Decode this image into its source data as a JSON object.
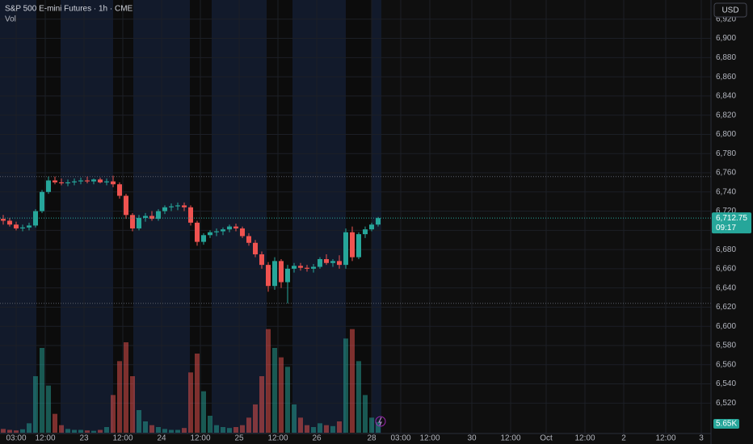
{
  "header": {
    "title": "S&P 500 E-mini Futures · 1h · CME",
    "volume_label": "Vol",
    "currency": "USD"
  },
  "chart_data": {
    "type": "candlestick",
    "x": [
      1,
      3,
      5,
      7,
      9,
      11,
      13,
      15,
      17,
      19,
      21,
      23,
      25,
      27,
      29,
      31,
      33,
      35,
      37,
      39,
      41,
      43,
      45,
      47,
      49,
      51,
      53,
      55,
      57,
      59,
      61,
      63,
      65,
      67,
      69,
      71,
      73,
      75,
      77,
      79,
      81,
      83,
      85,
      87,
      89,
      91,
      93,
      95,
      97,
      99,
      101,
      103,
      105,
      107,
      109,
      111,
      113,
      115,
      117
    ],
    "open": [
      6712,
      6710,
      6706,
      6702,
      6703,
      6705,
      6720,
      6740,
      6752,
      6750,
      6749,
      6750,
      6751,
      6752,
      6751,
      6753,
      6750,
      6751,
      6748,
      6736,
      6716,
      6702,
      6713,
      6715,
      6712,
      6720,
      6724,
      6725,
      6726,
      6724,
      6708,
      6688,
      6695,
      6698,
      6699,
      6701,
      6704,
      6702,
      6694,
      6687,
      6675,
      6664,
      6642,
      6668,
      6646,
      6660,
      6663,
      6661,
      6660,
      6662,
      6670,
      6666,
      6668,
      6664,
      6698,
      6672,
      6696,
      6701,
      6706
    ],
    "high": [
      6716,
      6713,
      6709,
      6706,
      6708,
      6722,
      6742,
      6756,
      6756,
      6754,
      6753,
      6754,
      6755,
      6756,
      6754,
      6755,
      6754,
      6757,
      6750,
      6738,
      6718,
      6716,
      6718,
      6720,
      6722,
      6726,
      6728,
      6729,
      6729,
      6726,
      6710,
      6697,
      6700,
      6702,
      6703,
      6706,
      6707,
      6704,
      6697,
      6690,
      6678,
      6667,
      6672,
      6670,
      6664,
      6666,
      6666,
      6664,
      6665,
      6672,
      6675,
      6670,
      6674,
      6702,
      6704,
      6698,
      6704,
      6708,
      6714
    ],
    "low": [
      6706,
      6704,
      6700,
      6699,
      6700,
      6703,
      6718,
      6738,
      6748,
      6747,
      6746,
      6747,
      6748,
      6749,
      6748,
      6749,
      6747,
      6745,
      6733,
      6712,
      6699,
      6700,
      6709,
      6710,
      6710,
      6717,
      6720,
      6721,
      6720,
      6705,
      6684,
      6685,
      6692,
      6694,
      6695,
      6698,
      6699,
      6692,
      6684,
      6672,
      6660,
      6636,
      6638,
      6640,
      6624,
      6656,
      6658,
      6657,
      6656,
      6660,
      6664,
      6662,
      6660,
      6660,
      6668,
      6670,
      6692,
      6699,
      6704
    ],
    "close": [
      6710,
      6706,
      6702,
      6703,
      6705,
      6720,
      6740,
      6752,
      6750,
      6749,
      6750,
      6751,
      6752,
      6751,
      6753,
      6750,
      6751,
      6748,
      6736,
      6716,
      6702,
      6713,
      6715,
      6712,
      6720,
      6724,
      6725,
      6726,
      6724,
      6708,
      6688,
      6695,
      6698,
      6699,
      6701,
      6704,
      6702,
      6694,
      6687,
      6675,
      6664,
      6642,
      6668,
      6646,
      6660,
      6663,
      6661,
      6660,
      6662,
      6670,
      6666,
      6668,
      6664,
      6698,
      6672,
      6696,
      6701,
      6706,
      6712.75
    ],
    "volume": [
      2000,
      1500,
      1200,
      1800,
      5000,
      30000,
      45000,
      25000,
      10000,
      4000,
      2000,
      1500,
      1500,
      1200,
      1000,
      1500,
      3000,
      20000,
      38000,
      48000,
      30000,
      12000,
      6000,
      4000,
      3000,
      2000,
      1500,
      1500,
      2500,
      32000,
      42000,
      22000,
      9000,
      4000,
      3000,
      2500,
      3000,
      4000,
      8000,
      15000,
      30000,
      55000,
      45000,
      40000,
      35000,
      15000,
      8000,
      4000,
      3000,
      5000,
      4000,
      3500,
      6000,
      50000,
      55000,
      38000,
      20000,
      8000,
      5650
    ],
    "up_color": "#26a69a",
    "down_color": "#ef5350",
    "xlim": [
      0,
      220
    ],
    "xticks": [
      {
        "value": 5,
        "label": "03:00"
      },
      {
        "value": 14,
        "label": "12:00"
      },
      {
        "value": 26,
        "label": "23"
      },
      {
        "value": 38,
        "label": "12:00"
      },
      {
        "value": 50,
        "label": "24"
      },
      {
        "value": 62,
        "label": "12:00"
      },
      {
        "value": 74,
        "label": "25"
      },
      {
        "value": 86,
        "label": "12:00"
      },
      {
        "value": 98,
        "label": "26"
      },
      {
        "value": 115,
        "label": "28"
      },
      {
        "value": 124,
        "label": "03:00"
      },
      {
        "value": 133,
        "label": "12:00"
      },
      {
        "value": 146,
        "label": "30"
      },
      {
        "value": 158,
        "label": "12:00"
      },
      {
        "value": 169,
        "label": "Oct"
      },
      {
        "value": 181,
        "label": "12:00"
      },
      {
        "value": 193,
        "label": "2"
      },
      {
        "value": 206,
        "label": "12:00"
      },
      {
        "value": 217,
        "label": "3"
      }
    ],
    "ylim": [
      6490,
      6940
    ],
    "yticks": [
      {
        "value": 6920,
        "label": "6,920"
      },
      {
        "value": 6900,
        "label": "6,900"
      },
      {
        "value": 6880,
        "label": "6,880"
      },
      {
        "value": 6860,
        "label": "6,860"
      },
      {
        "value": 6840,
        "label": "6,840"
      },
      {
        "value": 6820,
        "label": "6,820"
      },
      {
        "value": 6800,
        "label": "6,800"
      },
      {
        "value": 6780,
        "label": "6,780"
      },
      {
        "value": 6760,
        "label": "6,760"
      },
      {
        "value": 6740,
        "label": "6,740"
      },
      {
        "value": 6720,
        "label": "6,720"
      },
      {
        "value": 6700,
        "label": "6,700"
      },
      {
        "value": 6680,
        "label": "6,680"
      },
      {
        "value": 6660,
        "label": "6,660"
      },
      {
        "value": 6640,
        "label": "6,640"
      },
      {
        "value": 6620,
        "label": "6,620"
      },
      {
        "value": 6600,
        "label": "6,600"
      },
      {
        "value": 6580,
        "label": "6,580"
      },
      {
        "value": 6560,
        "label": "6,560"
      },
      {
        "value": 6540,
        "label": "6,540"
      },
      {
        "value": 6520,
        "label": "6,520"
      }
    ],
    "vlim": [
      0,
      60000
    ],
    "grid": true,
    "reference_lines": [
      6756,
      6624
    ],
    "last_price": {
      "value": 6712.75,
      "label": "6,712.75"
    },
    "countdown": "09:17",
    "last_volume": {
      "value": 5650,
      "label": "5.65K"
    }
  }
}
